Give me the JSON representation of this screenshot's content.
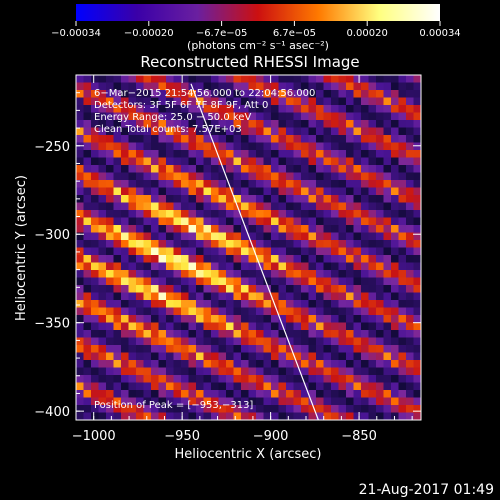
{
  "chart_data": {
    "type": "heatmap",
    "title": "Reconstructed RHESSI Image",
    "xlabel": "Heliocentric X (arcsec)",
    "ylabel": "Heliocentric Y (arcsec)",
    "xlim": [
      -1010,
      -815
    ],
    "ylim": [
      -405,
      -210
    ],
    "xticks": [
      {
        "value": -1000,
        "label": "−1000"
      },
      {
        "value": -950,
        "label": "−950"
      },
      {
        "value": -900,
        "label": "−900"
      },
      {
        "value": -850,
        "label": "−850"
      }
    ],
    "yticks": [
      {
        "value": -250,
        "label": "−250"
      },
      {
        "value": -300,
        "label": "−300"
      },
      {
        "value": -350,
        "label": "−350"
      },
      {
        "value": -400,
        "label": "−400"
      }
    ],
    "colorbar": {
      "range": [
        -0.00034,
        0.00034
      ],
      "tick_labels": [
        "−0.00034",
        "−0.00020",
        "−6.7e−05",
        "6.7e−05",
        "0.00020",
        "0.00034"
      ],
      "colors": [
        "#0000ff",
        "#3a00a8",
        "#6a1fa0",
        "#cc1010",
        "#ff7a00",
        "#ffff80",
        "#ffffff"
      ]
    },
    "units_label": "(photons cm⁻² s⁻¹ asec⁻²)",
    "annotations": [
      "6−Mar−2015 21:54:56.000  to  22:04:56.000",
      "Detectors: 3F 5F 6F 7F 8F 9F, Att 0",
      "Energy Range: 25.0 − 50.0 keV",
      "Clean     Total counts: 7.57E+03"
    ],
    "peak_label": "Position of Peak = [−953,−313]",
    "peak": {
      "x": -953,
      "y": -313
    },
    "limb_line": {
      "from": [
        -945,
        -215
      ],
      "to": [
        -873,
        -405
      ]
    }
  },
  "footer": {
    "timestamp": "21-Aug-2017 01:49"
  },
  "colors": {
    "background": "#000000",
    "text": "#ffffff"
  }
}
